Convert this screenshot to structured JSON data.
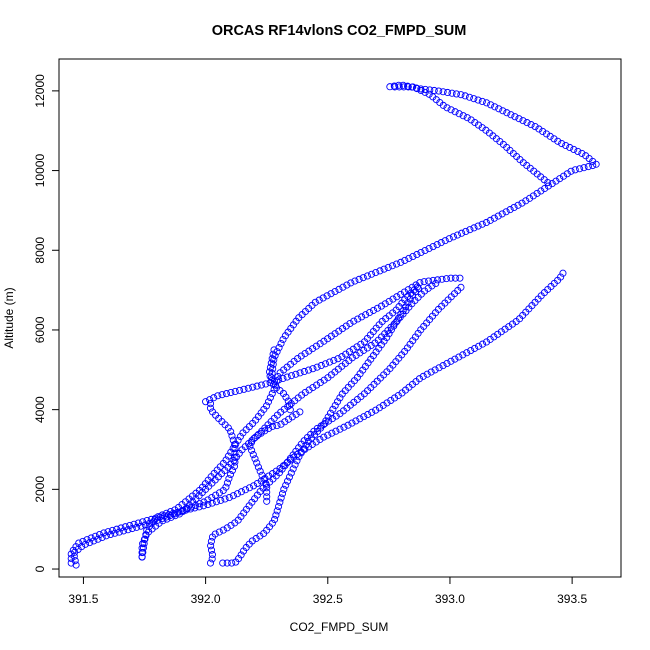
{
  "chart_data": {
    "type": "scatter",
    "title": "ORCAS RF14vlonS CO2_FMPD_SUM",
    "xlabel": "CO2_FMPD_SUM",
    "ylabel": "Altitude (m)",
    "xlim": [
      391.4,
      393.7
    ],
    "ylim": [
      -200,
      12800
    ],
    "x_ticks": [
      391.5,
      392.0,
      392.5,
      393.0,
      393.5
    ],
    "x_tick_labels": [
      "391.5",
      "392.0",
      "392.5",
      "393.0",
      "393.5"
    ],
    "y_ticks": [
      0,
      2000,
      4000,
      6000,
      8000,
      10000,
      12000
    ],
    "y_tick_labels": [
      "0",
      "2000",
      "4000",
      "6000",
      "8000",
      "10000",
      "12000"
    ],
    "marker": "open-circle",
    "color": "#0000ff",
    "grid": false,
    "legend": "none",
    "segments": [
      [
        [
          391.45,
          150
        ],
        [
          391.45,
          400
        ],
        [
          391.48,
          650
        ],
        [
          391.58,
          900
        ],
        [
          391.75,
          1200
        ],
        [
          391.9,
          1450
        ],
        [
          392.0,
          1600
        ],
        [
          392.1,
          1800
        ],
        [
          392.2,
          2100
        ],
        [
          392.3,
          2500
        ],
        [
          392.38,
          2900
        ],
        [
          392.48,
          3300
        ],
        [
          392.58,
          3600
        ],
        [
          392.7,
          4000
        ],
        [
          392.8,
          4400
        ],
        [
          392.88,
          4800
        ],
        [
          393.0,
          5200
        ],
        [
          393.15,
          5700
        ],
        [
          393.28,
          6250
        ],
        [
          393.38,
          6900
        ],
        [
          393.45,
          7300
        ],
        [
          393.47,
          7500
        ]
      ],
      [
        [
          392.02,
          4150
        ],
        [
          392.02,
          4000
        ],
        [
          392.05,
          3800
        ],
        [
          392.1,
          3500
        ],
        [
          392.12,
          3100
        ],
        [
          392.08,
          2700
        ],
        [
          392.02,
          2300
        ],
        [
          391.98,
          2000
        ],
        [
          391.92,
          1700
        ],
        [
          391.88,
          1500
        ],
        [
          391.8,
          1300
        ],
        [
          391.76,
          1000
        ],
        [
          391.75,
          700
        ],
        [
          391.74,
          300
        ]
      ],
      [
        [
          391.47,
          100
        ],
        [
          391.46,
          400
        ],
        [
          391.5,
          600
        ],
        [
          391.6,
          850
        ],
        [
          391.75,
          1100
        ],
        [
          391.88,
          1400
        ],
        [
          392.0,
          1700
        ],
        [
          392.08,
          2000
        ],
        [
          392.1,
          2350
        ],
        [
          392.12,
          2600
        ],
        [
          392.12,
          3100
        ],
        [
          392.15,
          3400
        ],
        [
          392.2,
          3700
        ],
        [
          392.25,
          4100
        ],
        [
          392.28,
          4500
        ],
        [
          392.3,
          4900
        ],
        [
          392.38,
          5300
        ],
        [
          392.48,
          5700
        ],
        [
          392.6,
          6200
        ],
        [
          392.72,
          6600
        ],
        [
          392.8,
          6900
        ],
        [
          392.88,
          7200
        ],
        [
          393.0,
          7300
        ],
        [
          393.05,
          7300
        ]
      ],
      [
        [
          392.02,
          150
        ],
        [
          392.03,
          300
        ],
        [
          392.02,
          600
        ],
        [
          392.03,
          850
        ],
        [
          392.08,
          1000
        ],
        [
          392.13,
          1200
        ],
        [
          392.18,
          1600
        ],
        [
          392.23,
          2000
        ],
        [
          392.3,
          2400
        ],
        [
          392.35,
          2800
        ],
        [
          392.4,
          3200
        ],
        [
          392.45,
          3500
        ],
        [
          392.55,
          3900
        ],
        [
          392.65,
          4400
        ],
        [
          392.75,
          5000
        ],
        [
          392.82,
          5500
        ],
        [
          392.88,
          6000
        ],
        [
          392.95,
          6500
        ],
        [
          393.0,
          6800
        ],
        [
          393.05,
          7100
        ]
      ],
      [
        [
          392.07,
          150
        ],
        [
          392.12,
          150
        ],
        [
          392.14,
          300
        ],
        [
          392.16,
          500
        ],
        [
          392.19,
          700
        ],
        [
          392.24,
          900
        ],
        [
          392.28,
          1200
        ],
        [
          392.3,
          1600
        ],
        [
          392.32,
          2000
        ],
        [
          392.35,
          2400
        ],
        [
          392.38,
          2800
        ],
        [
          392.42,
          3200
        ],
        [
          392.48,
          3600
        ],
        [
          392.52,
          4000
        ],
        [
          392.56,
          4400
        ],
        [
          392.62,
          4800
        ],
        [
          392.68,
          5300
        ],
        [
          392.74,
          5800
        ],
        [
          392.78,
          6200
        ],
        [
          392.82,
          6600
        ],
        [
          392.85,
          6900
        ],
        [
          392.88,
          7100
        ]
      ],
      [
        [
          392.28,
          5500
        ],
        [
          392.27,
          5200
        ],
        [
          392.26,
          4900
        ],
        [
          392.28,
          4600
        ],
        [
          392.32,
          4400
        ],
        [
          392.34,
          4200
        ],
        [
          392.35,
          3900
        ]
      ],
      [
        [
          392.25,
          1700
        ],
        [
          392.25,
          2100
        ],
        [
          392.22,
          2500
        ],
        [
          392.2,
          2800
        ],
        [
          392.18,
          3100
        ],
        [
          392.2,
          3300
        ],
        [
          392.25,
          3500
        ],
        [
          392.28,
          3600
        ],
        [
          392.3,
          3600
        ],
        [
          392.35,
          3800
        ],
        [
          392.4,
          4000
        ]
      ],
      [
        [
          391.74,
          300
        ],
        [
          391.74,
          600
        ],
        [
          391.76,
          900
        ],
        [
          391.82,
          1200
        ],
        [
          391.9,
          1400
        ],
        [
          391.95,
          1700
        ],
        [
          392.0,
          2000
        ],
        [
          392.05,
          2300
        ],
        [
          392.1,
          2600
        ],
        [
          392.15,
          3000
        ],
        [
          392.22,
          3400
        ],
        [
          392.3,
          3900
        ],
        [
          392.4,
          4400
        ],
        [
          392.5,
          4800
        ],
        [
          392.6,
          5300
        ],
        [
          392.7,
          5700
        ],
        [
          392.78,
          6200
        ],
        [
          392.85,
          6700
        ],
        [
          392.9,
          7000
        ],
        [
          392.95,
          7200
        ]
      ],
      [
        [
          392.0,
          4200
        ],
        [
          392.05,
          4350
        ],
        [
          392.15,
          4500
        ],
        [
          392.25,
          4650
        ],
        [
          392.35,
          4850
        ],
        [
          392.45,
          5050
        ],
        [
          392.55,
          5300
        ],
        [
          392.65,
          5700
        ],
        [
          392.72,
          6200
        ],
        [
          392.78,
          6500
        ],
        [
          392.82,
          6800
        ],
        [
          392.87,
          7100
        ]
      ],
      [
        [
          392.27,
          4800
        ],
        [
          392.28,
          5300
        ],
        [
          392.32,
          5800
        ],
        [
          392.38,
          6300
        ],
        [
          392.45,
          6700
        ],
        [
          392.6,
          7200
        ],
        [
          392.8,
          7700
        ],
        [
          393.0,
          8300
        ],
        [
          393.15,
          8700
        ],
        [
          393.3,
          9200
        ],
        [
          393.4,
          9600
        ],
        [
          393.5,
          10000
        ],
        [
          393.6,
          10150
        ],
        [
          393.55,
          10400
        ],
        [
          393.45,
          10700
        ],
        [
          393.35,
          11100
        ],
        [
          393.25,
          11400
        ],
        [
          393.15,
          11700
        ],
        [
          393.05,
          11900
        ],
        [
          392.95,
          12000
        ],
        [
          392.88,
          12050
        ],
        [
          392.8,
          12150
        ],
        [
          392.75,
          12100
        ]
      ],
      [
        [
          393.4,
          9700
        ],
        [
          393.3,
          10200
        ],
        [
          393.22,
          10650
        ],
        [
          393.15,
          11000
        ],
        [
          393.08,
          11300
        ],
        [
          392.98,
          11600
        ],
        [
          392.92,
          11900
        ],
        [
          392.85,
          12100
        ],
        [
          392.77,
          12100
        ]
      ]
    ]
  }
}
